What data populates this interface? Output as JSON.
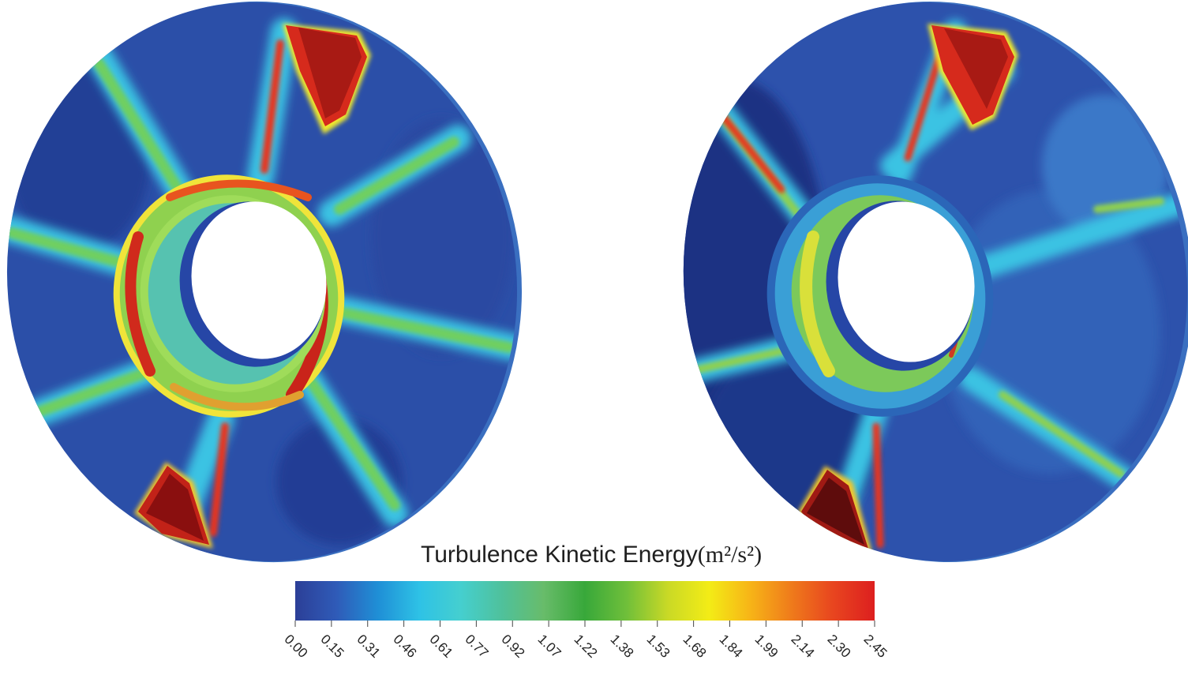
{
  "legend": {
    "title": "Turbulence Kinetic Energy",
    "unit": "(m²/s²)",
    "min": 0.0,
    "max": 2.45,
    "ticks": [
      "0.00",
      "0.15",
      "0.31",
      "0.46",
      "0.61",
      "0.77",
      "0.92",
      "1.07",
      "1.22",
      "1.38",
      "1.53",
      "1.68",
      "1.84",
      "1.99",
      "2.14",
      "2.30",
      "2.45"
    ],
    "colors": [
      "#2c3f97",
      "#2f5bb8",
      "#1f8fd6",
      "#2ec2e6",
      "#45cfcf",
      "#4fc19b",
      "#68bc6a",
      "#38a83a",
      "#6fbf3a",
      "#c9d926",
      "#f3ec16",
      "#f7b417",
      "#ef7a1b",
      "#e8451f",
      "#dd1f1f"
    ]
  },
  "panels": [
    {
      "name": "left",
      "colormap_peak": "#8a0f0f"
    },
    {
      "name": "right",
      "colormap_peak": "#7a0f0f"
    }
  ]
}
